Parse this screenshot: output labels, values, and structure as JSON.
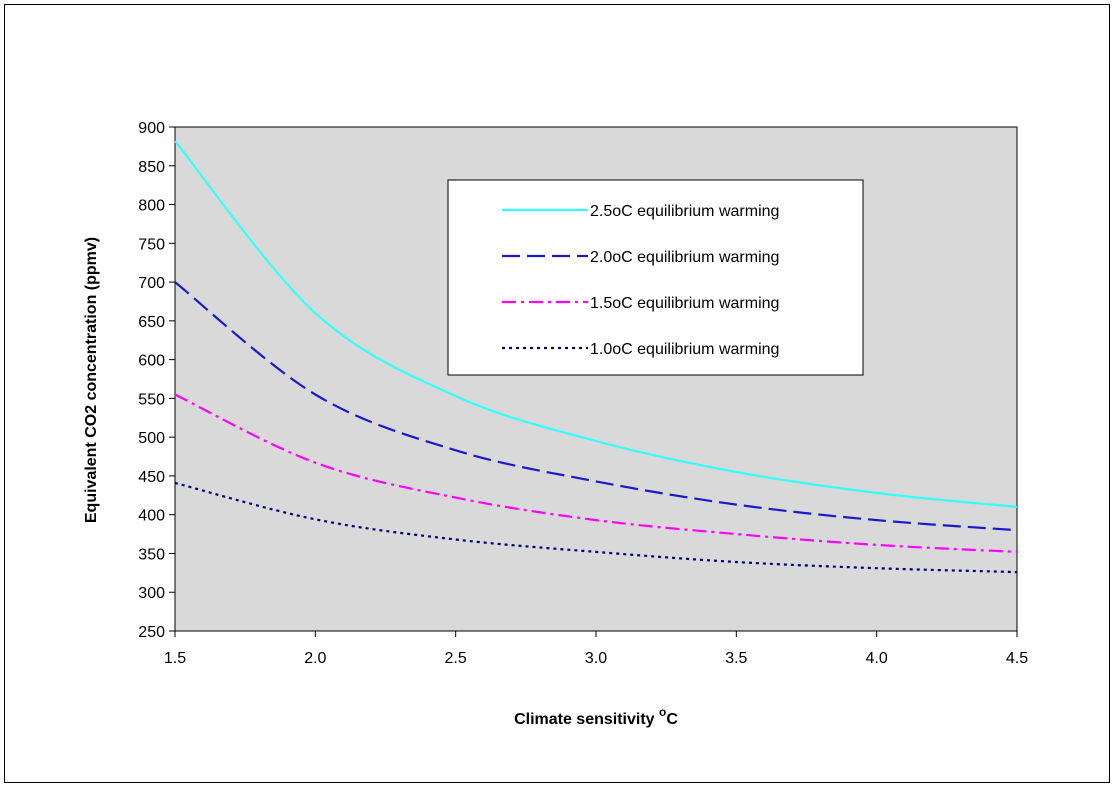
{
  "chart_data": {
    "type": "line",
    "xlabel": "Climate sensitivity",
    "xlabel_super": "o",
    "xlabel_unit": "C",
    "ylabel": "Equivalent CO2 concentration (ppmv)",
    "xlim": [
      1.5,
      4.5
    ],
    "ylim": [
      250,
      900
    ],
    "x_ticks": [
      "1.5",
      "2.0",
      "2.5",
      "3.0",
      "3.5",
      "4.0",
      "4.5"
    ],
    "y_ticks": [
      "250",
      "300",
      "350",
      "400",
      "450",
      "500",
      "550",
      "600",
      "650",
      "700",
      "750",
      "800",
      "850",
      "900"
    ],
    "plot_background": "#d9d9d9",
    "grid": false,
    "legend_position": "top-right",
    "x": [
      1.5,
      2.0,
      2.5,
      3.0,
      3.5,
      4.0,
      4.5
    ],
    "series": [
      {
        "name": "2.5oC equilibrium warming",
        "color": "#33ffff",
        "dash": "solid",
        "values": [
          882,
          660,
          553,
          495,
          455,
          428,
          410
        ]
      },
      {
        "name": "2.0oC equilibrium warming",
        "color": "#1a1acc",
        "dash": "dashed",
        "values": [
          700,
          555,
          483,
          443,
          413,
          393,
          380
        ]
      },
      {
        "name": "1.5oC equilibrium warming",
        "color": "#ff00ff",
        "dash": "dashdot",
        "values": [
          555,
          467,
          422,
          393,
          375,
          361,
          352
        ]
      },
      {
        "name": "1.0oC equilibrium warming",
        "color": "#000080",
        "dash": "dotted",
        "values": [
          441,
          394,
          368,
          352,
          339,
          331,
          326
        ]
      }
    ]
  }
}
